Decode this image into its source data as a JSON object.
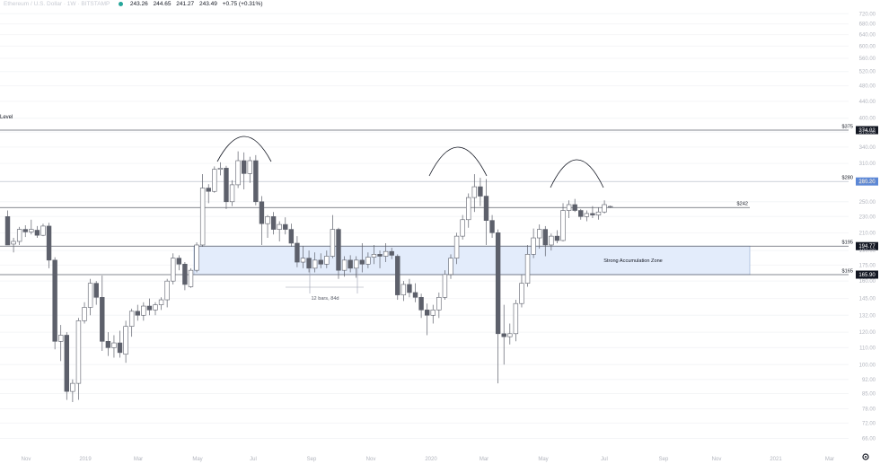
{
  "header": {
    "symbol": "Ethereum / U.S. Dollar · 1W · BITSTAMP",
    "open": "243.26",
    "high": "244.65",
    "low": "241.27",
    "close": "243.49",
    "change": "+0.75 (+0.31%)"
  },
  "level_label": "Level",
  "colors": {
    "up": "#ffffff",
    "down": "#5d606b",
    "wick": "#5d606b",
    "zone": "#e3ecfb",
    "zone_border": "#9db2d8",
    "accent_blue": "#5b87d6"
  },
  "chart_data": {
    "type": "candlestick",
    "y_axis": {
      "scale": "log",
      "range": [
        60,
        720
      ],
      "tick_labels": [
        "720.00",
        "680.00",
        "640.00",
        "600.00",
        "560.00",
        "520.00",
        "480.00",
        "440.00",
        "400.00",
        "370.00",
        "340.00",
        "310.00",
        "280.00",
        "250.00",
        "230.00",
        "210.00",
        "190.00",
        "175.00",
        "160.00",
        "145.00",
        "132.00",
        "120.00",
        "110.00",
        "100.00",
        "92.00",
        "85.00",
        "78.00",
        "72.00",
        "66.00"
      ]
    },
    "x_axis": {
      "labels": [
        "Nov",
        "2019",
        "Mar",
        "May",
        "Jul",
        "Sep",
        "Nov",
        "2020",
        "Mar",
        "May",
        "Jul",
        "Sep",
        "Nov",
        "2021",
        "Mar"
      ]
    },
    "candles": [
      {
        "o": 230,
        "h": 238,
        "l": 196,
        "c": 196
      },
      {
        "o": 197,
        "h": 204,
        "l": 188,
        "c": 200
      },
      {
        "o": 200,
        "h": 217,
        "l": 196,
        "c": 214
      },
      {
        "o": 214,
        "h": 219,
        "l": 205,
        "c": 211
      },
      {
        "o": 211,
        "h": 226,
        "l": 208,
        "c": 214
      },
      {
        "o": 213,
        "h": 218,
        "l": 204,
        "c": 207
      },
      {
        "o": 207,
        "h": 221,
        "l": 206,
        "c": 218
      },
      {
        "o": 218,
        "h": 222,
        "l": 172,
        "c": 180
      },
      {
        "o": 180,
        "h": 183,
        "l": 109,
        "c": 114
      },
      {
        "o": 114,
        "h": 125,
        "l": 102,
        "c": 118
      },
      {
        "o": 118,
        "h": 120,
        "l": 82,
        "c": 86
      },
      {
        "o": 86,
        "h": 92,
        "l": 81,
        "c": 90
      },
      {
        "o": 90,
        "h": 130,
        "l": 82,
        "c": 128
      },
      {
        "o": 128,
        "h": 142,
        "l": 126,
        "c": 138
      },
      {
        "o": 138,
        "h": 162,
        "l": 132,
        "c": 158
      },
      {
        "o": 158,
        "h": 160,
        "l": 140,
        "c": 146
      },
      {
        "o": 146,
        "h": 165,
        "l": 108,
        "c": 114
      },
      {
        "o": 114,
        "h": 120,
        "l": 105,
        "c": 110
      },
      {
        "o": 110,
        "h": 118,
        "l": 104,
        "c": 113
      },
      {
        "o": 113,
        "h": 121,
        "l": 104,
        "c": 107
      },
      {
        "o": 106,
        "h": 128,
        "l": 101,
        "c": 124
      },
      {
        "o": 124,
        "h": 137,
        "l": 117,
        "c": 135
      },
      {
        "o": 135,
        "h": 140,
        "l": 128,
        "c": 132
      },
      {
        "o": 132,
        "h": 142,
        "l": 128,
        "c": 139
      },
      {
        "o": 139,
        "h": 145,
        "l": 132,
        "c": 136
      },
      {
        "o": 136,
        "h": 142,
        "l": 132,
        "c": 140
      },
      {
        "o": 140,
        "h": 146,
        "l": 136,
        "c": 144
      },
      {
        "o": 144,
        "h": 162,
        "l": 138,
        "c": 160
      },
      {
        "o": 160,
        "h": 187,
        "l": 157,
        "c": 182
      },
      {
        "o": 182,
        "h": 185,
        "l": 170,
        "c": 176
      },
      {
        "o": 176,
        "h": 178,
        "l": 152,
        "c": 157
      },
      {
        "o": 155,
        "h": 172,
        "l": 154,
        "c": 170
      },
      {
        "o": 170,
        "h": 199,
        "l": 168,
        "c": 196
      },
      {
        "o": 196,
        "h": 292,
        "l": 194,
        "c": 270
      },
      {
        "o": 270,
        "h": 276,
        "l": 248,
        "c": 265
      },
      {
        "o": 265,
        "h": 305,
        "l": 263,
        "c": 300
      },
      {
        "o": 300,
        "h": 312,
        "l": 290,
        "c": 302
      },
      {
        "o": 302,
        "h": 306,
        "l": 240,
        "c": 250
      },
      {
        "o": 250,
        "h": 282,
        "l": 244,
        "c": 275
      },
      {
        "o": 275,
        "h": 332,
        "l": 270,
        "c": 315
      },
      {
        "o": 315,
        "h": 330,
        "l": 268,
        "c": 293
      },
      {
        "o": 293,
        "h": 322,
        "l": 278,
        "c": 315
      },
      {
        "o": 315,
        "h": 325,
        "l": 245,
        "c": 250
      },
      {
        "o": 250,
        "h": 258,
        "l": 196,
        "c": 221
      },
      {
        "o": 221,
        "h": 232,
        "l": 204,
        "c": 230
      },
      {
        "o": 230,
        "h": 236,
        "l": 208,
        "c": 214
      },
      {
        "o": 214,
        "h": 224,
        "l": 200,
        "c": 220
      },
      {
        "o": 220,
        "h": 229,
        "l": 208,
        "c": 214
      },
      {
        "o": 214,
        "h": 221,
        "l": 194,
        "c": 198
      },
      {
        "o": 198,
        "h": 206,
        "l": 173,
        "c": 178
      },
      {
        "o": 178,
        "h": 195,
        "l": 172,
        "c": 182
      },
      {
        "o": 182,
        "h": 190,
        "l": 168,
        "c": 172
      },
      {
        "o": 172,
        "h": 188,
        "l": 168,
        "c": 180
      },
      {
        "o": 180,
        "h": 187,
        "l": 172,
        "c": 176
      },
      {
        "o": 176,
        "h": 190,
        "l": 172,
        "c": 184
      },
      {
        "o": 184,
        "h": 232,
        "l": 182,
        "c": 214
      },
      {
        "o": 214,
        "h": 216,
        "l": 162,
        "c": 170
      },
      {
        "o": 170,
        "h": 184,
        "l": 164,
        "c": 180
      },
      {
        "o": 180,
        "h": 185,
        "l": 168,
        "c": 172
      },
      {
        "o": 172,
        "h": 184,
        "l": 163,
        "c": 180
      },
      {
        "o": 180,
        "h": 198,
        "l": 168,
        "c": 176
      },
      {
        "o": 176,
        "h": 188,
        "l": 172,
        "c": 183
      },
      {
        "o": 183,
        "h": 196,
        "l": 176,
        "c": 186
      },
      {
        "o": 186,
        "h": 190,
        "l": 172,
        "c": 184
      },
      {
        "o": 184,
        "h": 198,
        "l": 178,
        "c": 189
      },
      {
        "o": 189,
        "h": 193,
        "l": 181,
        "c": 185
      },
      {
        "o": 184,
        "h": 186,
        "l": 144,
        "c": 148
      },
      {
        "o": 148,
        "h": 160,
        "l": 143,
        "c": 157
      },
      {
        "o": 157,
        "h": 162,
        "l": 146,
        "c": 150
      },
      {
        "o": 150,
        "h": 158,
        "l": 142,
        "c": 146
      },
      {
        "o": 146,
        "h": 149,
        "l": 130,
        "c": 136
      },
      {
        "o": 136,
        "h": 141,
        "l": 118,
        "c": 132
      },
      {
        "o": 132,
        "h": 140,
        "l": 126,
        "c": 136
      },
      {
        "o": 136,
        "h": 150,
        "l": 130,
        "c": 146
      },
      {
        "o": 146,
        "h": 170,
        "l": 144,
        "c": 166
      },
      {
        "o": 166,
        "h": 186,
        "l": 162,
        "c": 182
      },
      {
        "o": 182,
        "h": 210,
        "l": 176,
        "c": 206
      },
      {
        "o": 206,
        "h": 232,
        "l": 202,
        "c": 226
      },
      {
        "o": 226,
        "h": 262,
        "l": 216,
        "c": 256
      },
      {
        "o": 256,
        "h": 292,
        "l": 236,
        "c": 272
      },
      {
        "o": 272,
        "h": 286,
        "l": 244,
        "c": 258
      },
      {
        "o": 258,
        "h": 284,
        "l": 196,
        "c": 225
      },
      {
        "o": 225,
        "h": 232,
        "l": 204,
        "c": 210
      },
      {
        "o": 210,
        "h": 214,
        "l": 90,
        "c": 119
      },
      {
        "o": 119,
        "h": 140,
        "l": 100,
        "c": 117
      },
      {
        "o": 117,
        "h": 126,
        "l": 112,
        "c": 119
      },
      {
        "o": 119,
        "h": 144,
        "l": 114,
        "c": 141
      },
      {
        "o": 141,
        "h": 166,
        "l": 138,
        "c": 158
      },
      {
        "o": 158,
        "h": 196,
        "l": 155,
        "c": 186
      },
      {
        "o": 186,
        "h": 215,
        "l": 182,
        "c": 204
      },
      {
        "o": 204,
        "h": 220,
        "l": 192,
        "c": 214
      },
      {
        "o": 214,
        "h": 218,
        "l": 184,
        "c": 196
      },
      {
        "o": 196,
        "h": 209,
        "l": 190,
        "c": 206
      },
      {
        "o": 206,
        "h": 213,
        "l": 198,
        "c": 201
      },
      {
        "o": 201,
        "h": 248,
        "l": 200,
        "c": 238
      },
      {
        "o": 238,
        "h": 252,
        "l": 228,
        "c": 246
      },
      {
        "o": 246,
        "h": 254,
        "l": 236,
        "c": 238
      },
      {
        "o": 238,
        "h": 240,
        "l": 226,
        "c": 230
      },
      {
        "o": 230,
        "h": 238,
        "l": 224,
        "c": 234
      },
      {
        "o": 234,
        "h": 244,
        "l": 228,
        "c": 232
      },
      {
        "o": 232,
        "h": 242,
        "l": 226,
        "c": 236
      },
      {
        "o": 236,
        "h": 252,
        "l": 234,
        "c": 246
      },
      {
        "o": 243.26,
        "h": 244.65,
        "l": 241.27,
        "c": 243.49
      }
    ],
    "horizontal_levels": [
      {
        "label": "$375",
        "price_tag": "374.02",
        "price": 374.02
      },
      {
        "label": "$280",
        "price_tag": "280.20",
        "price": 280.2
      },
      {
        "label": "$242",
        "price_tag": "",
        "price": 242
      },
      {
        "label": "$195",
        "price_tag": "194.77",
        "price": 194.77
      },
      {
        "label": "$165",
        "price_tag": "165.90",
        "price": 165.9
      }
    ],
    "zone": {
      "label": "Strong Accumulation Zone",
      "top": 194.77,
      "bottom": 165.9
    },
    "measure": {
      "label": "12 bars, 84d"
    },
    "arcs": 3
  }
}
